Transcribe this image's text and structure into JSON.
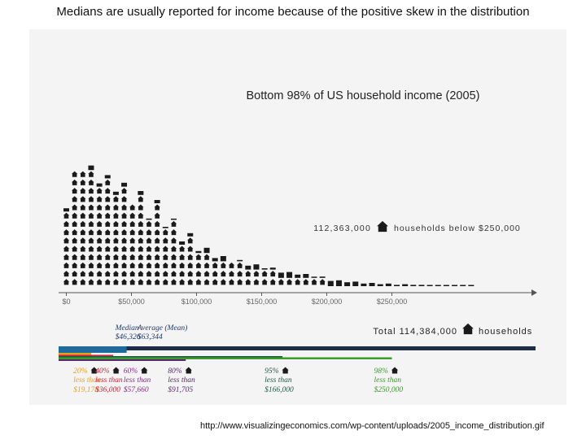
{
  "slide": {
    "title": "Medians are usually reported for income because of the positive skew in the distribution",
    "source": "http://www.visualizingeconomics.com/wp-content/uploads/2005_income_distribution.gif"
  },
  "chart_data": {
    "type": "bar",
    "title": "Bottom 98% of US household income (2005)",
    "x_unit": "income ($)",
    "y_unit": "house icons",
    "bin_width": 10000,
    "bins": [
      0,
      10000,
      20000,
      30000,
      40000,
      50000,
      60000,
      70000,
      80000,
      90000,
      100000,
      110000,
      120000,
      130000,
      140000,
      150000,
      160000,
      170000,
      180000,
      190000,
      200000,
      210000,
      220000,
      230000,
      240000
    ],
    "icons_low": [
      9.5,
      14,
      12.5,
      11.5,
      10,
      8.2,
      7.2,
      5.5,
      4.3,
      3.5,
      3,
      2.6,
      2.2,
      1.8,
      1.5,
      1.1,
      0.8,
      0.6,
      0.4,
      0.3,
      0.2,
      0.2,
      0.1,
      0.1,
      0.1
    ],
    "icons_high": [
      14,
      14.7,
      13.5,
      12.6,
      11.6,
      10.5,
      8.1,
      6.5,
      4.8,
      3.8,
      3.2,
      2.8,
      2.3,
      1.9,
      1.6,
      1.2,
      0.9,
      0.7,
      0.5,
      0.4,
      0.3,
      0.2,
      0.1,
      0.1,
      0.1
    ],
    "x_ticks": [
      "$0",
      "$50,000",
      "$100,000",
      "$150,000",
      "$200,000",
      "$250,000"
    ],
    "x_tick_values": [
      0,
      50000,
      100000,
      150000,
      200000,
      250000
    ],
    "xlim": [
      0,
      290000
    ],
    "legend_icon": {
      "count": "112,363,000",
      "label": "households below $250,000"
    },
    "total": {
      "label": "Total 114,384,000",
      "unit": "households"
    },
    "median": {
      "label": "Median",
      "value": "$46,326",
      "x": 46326
    },
    "mean": {
      "label": "Average (Mean)",
      "value": "$63,344",
      "x": 63344
    },
    "percentiles": [
      {
        "pct": "20%",
        "text": "less than",
        "value": "$19,178",
        "x": 19178,
        "color": "#e8a020"
      },
      {
        "pct": "40%",
        "text": "less than",
        "value": "$36,000",
        "x": 36000,
        "color": "#d0203a"
      },
      {
        "pct": "60%",
        "text": "less than",
        "value": "$57,660",
        "x": 57660,
        "color": "#8a2a8a"
      },
      {
        "pct": "80%",
        "text": "less than",
        "value": "$91,705",
        "x": 91705,
        "color": "#5a2a6a"
      },
      {
        "pct": "95%",
        "text": "less than",
        "value": "$166,000",
        "x": 166000,
        "color": "#1e5a46"
      },
      {
        "pct": "98%",
        "text": "less than",
        "value": "$250,000",
        "x": 250000,
        "color": "#3a9a2a"
      }
    ],
    "colors": {
      "icon": "#1a1a1a",
      "median_label": "#1e3a6a",
      "navy_band": "#1e2e4a",
      "blue_band": "#1e6a9a",
      "axis_text": "#666666"
    }
  }
}
